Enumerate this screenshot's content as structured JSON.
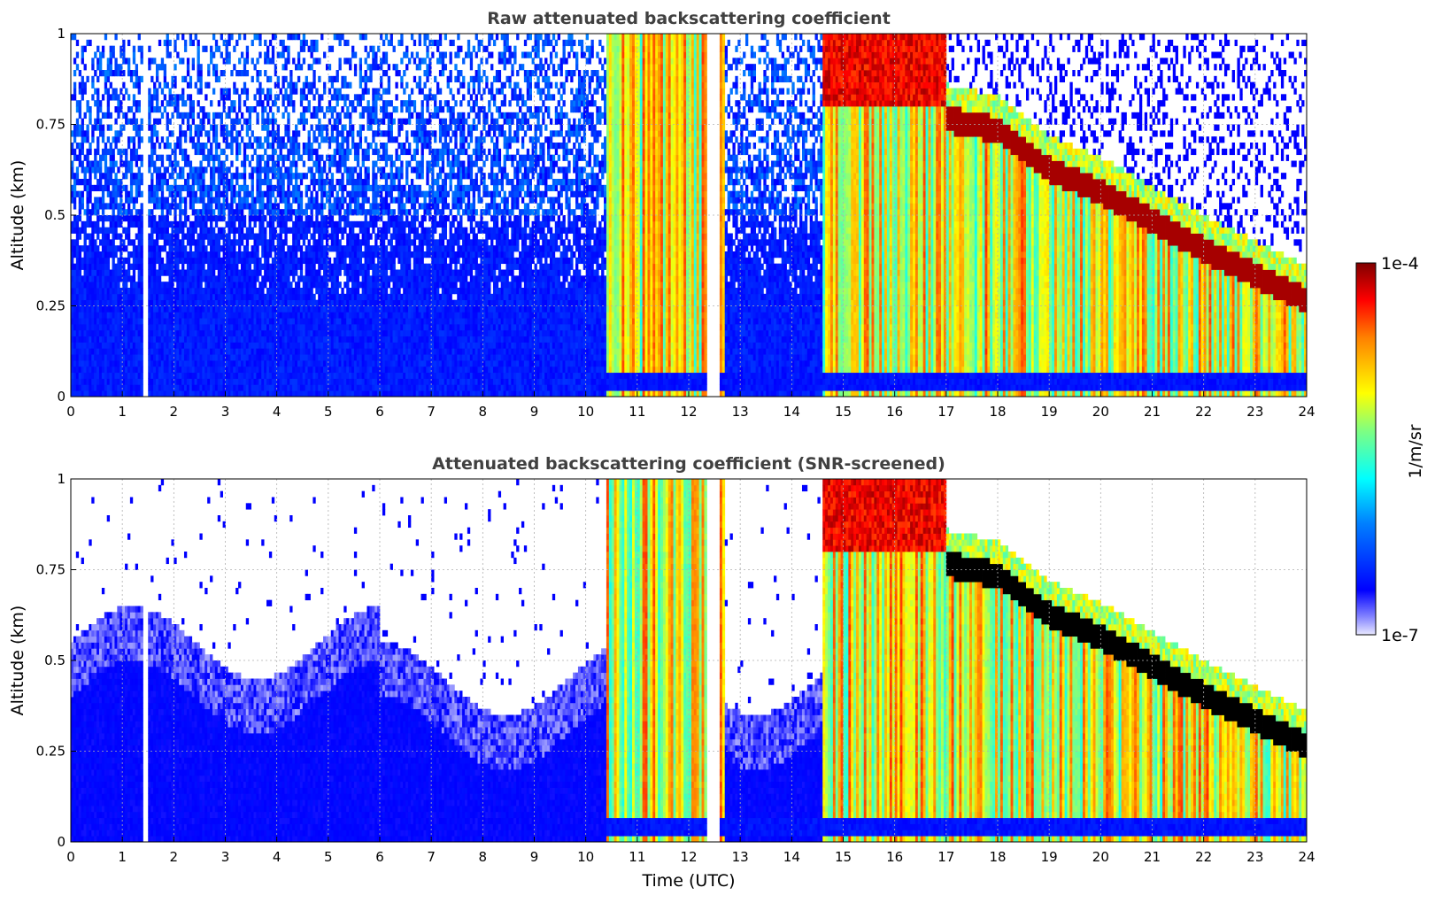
{
  "chart_data": [
    {
      "type": "heatmap",
      "title": "Raw attenuated backscattering coefficient",
      "xlabel": "",
      "ylabel": "Altitude (km)",
      "xlim": [
        0,
        24
      ],
      "ylim": [
        0,
        1
      ],
      "xticks": [
        "0",
        "1",
        "2",
        "3",
        "4",
        "5",
        "6",
        "7",
        "8",
        "9",
        "10",
        "11",
        "12",
        "13",
        "14",
        "15",
        "16",
        "17",
        "18",
        "19",
        "20",
        "21",
        "22",
        "23",
        "24"
      ],
      "yticks": [
        "0",
        "0.25",
        "0.5",
        "0.75",
        "1"
      ],
      "grid": true,
      "colormap": "jet",
      "screened": false,
      "cloud_top_km": [
        [
          17.0,
          0.8
        ],
        [
          18.0,
          0.77
        ],
        [
          19.0,
          0.66
        ],
        [
          20.0,
          0.6
        ],
        [
          21.0,
          0.52
        ],
        [
          22.0,
          0.44
        ],
        [
          23.0,
          0.37
        ],
        [
          24.0,
          0.3
        ]
      ],
      "gaps_utc": [
        [
          1.42,
          1.52
        ],
        [
          12.35,
          12.6
        ]
      ]
    },
    {
      "type": "heatmap",
      "title": "Attenuated backscattering coefficient (SNR-screened)",
      "xlabel": "Time (UTC)",
      "ylabel": "Altitude (km)",
      "xlim": [
        0,
        24
      ],
      "ylim": [
        0,
        1
      ],
      "xticks": [
        "0",
        "1",
        "2",
        "3",
        "4",
        "5",
        "6",
        "7",
        "8",
        "9",
        "10",
        "11",
        "12",
        "13",
        "14",
        "15",
        "16",
        "17",
        "18",
        "19",
        "20",
        "21",
        "22",
        "23",
        "24"
      ],
      "yticks": [
        "0",
        "0.25",
        "0.5",
        "0.75",
        "1"
      ],
      "grid": true,
      "colormap": "jet",
      "screened": true,
      "cloud_top_km": [
        [
          17.0,
          0.8
        ],
        [
          18.0,
          0.77
        ],
        [
          19.0,
          0.66
        ],
        [
          20.0,
          0.6
        ],
        [
          21.0,
          0.52
        ],
        [
          22.0,
          0.44
        ],
        [
          23.0,
          0.37
        ],
        [
          24.0,
          0.3
        ]
      ],
      "gaps_utc": [
        [
          1.42,
          1.52
        ],
        [
          12.35,
          12.6
        ]
      ]
    }
  ],
  "colorbar": {
    "label": "1/m/sr",
    "max_label": "1e-4",
    "min_label": "1e-7",
    "min": 1e-07,
    "max": 0.0001,
    "scale": "log"
  }
}
